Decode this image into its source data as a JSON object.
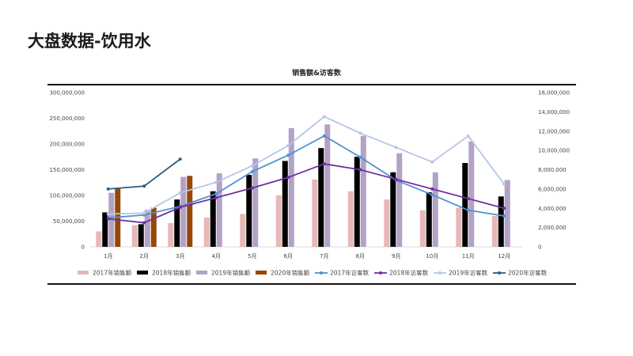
{
  "page": {
    "title": "大盘数据-饮用水"
  },
  "chart_data": {
    "type": "bar",
    "title": "销售额&访客数",
    "categories": [
      "1月",
      "2月",
      "3月",
      "4月",
      "5月",
      "6月",
      "7月",
      "8月",
      "9月",
      "10月",
      "11月",
      "12月"
    ],
    "y_left": {
      "min": 0,
      "max": 300000000,
      "ticks": [
        0,
        50000000,
        100000000,
        150000000,
        200000000,
        250000000,
        300000000
      ],
      "tick_labels": [
        "0",
        "50,000,000",
        "100,000,000",
        "150,000,000",
        "200,000,000",
        "250,000,000",
        "300,000,000"
      ]
    },
    "y_right": {
      "min": 0,
      "max": 16000000,
      "ticks": [
        0,
        2000000,
        4000000,
        6000000,
        8000000,
        10000000,
        12000000,
        14000000,
        16000000
      ],
      "tick_labels": [
        "0",
        "2,000,000",
        "4,000,000",
        "6,000,000",
        "8,000,000",
        "10,000,000",
        "12,000,000",
        "14,000,000",
        "16,000,000"
      ]
    },
    "bar_series": [
      {
        "name": "2017年销售额",
        "color": "#e6b8b7",
        "values": [
          30000000,
          42000000,
          46000000,
          57000000,
          64000000,
          100000000,
          131000000,
          108000000,
          92000000,
          71000000,
          76000000,
          60000000
        ]
      },
      {
        "name": "2018年销售额",
        "color": "#000000",
        "values": [
          67000000,
          44000000,
          92000000,
          108000000,
          140000000,
          167000000,
          192000000,
          175000000,
          145000000,
          106000000,
          163000000,
          98000000
        ]
      },
      {
        "name": "2019年销售额",
        "color": "#b3a2c7",
        "values": [
          105000000,
          72000000,
          136000000,
          143000000,
          172000000,
          231000000,
          238000000,
          216000000,
          182000000,
          145000000,
          205000000,
          130000000
        ]
      },
      {
        "name": "2020年销售额",
        "color": "#974706",
        "values": [
          114000000,
          76000000,
          138000000,
          null,
          null,
          null,
          null,
          null,
          null,
          null,
          null,
          null
        ]
      }
    ],
    "line_series": [
      {
        "name": "2017年访客数",
        "color": "#4f93cf",
        "values": [
          3000000,
          3300000,
          4200000,
          5500000,
          7800000,
          9500000,
          11500000,
          9300000,
          6900000,
          5400000,
          3800000,
          3200000
        ]
      },
      {
        "name": "2018年访客数",
        "color": "#7030a0",
        "values": [
          2900000,
          2500000,
          4100000,
          5100000,
          6100000,
          7200000,
          8600000,
          8000000,
          7000000,
          6000000,
          5000000,
          4000000
        ]
      },
      {
        "name": "2019年访客数",
        "color": "#b4c7e7",
        "values": [
          3400000,
          3500000,
          5600000,
          6700000,
          8400000,
          10500000,
          13500000,
          11800000,
          10300000,
          8800000,
          11500000,
          6500000
        ]
      },
      {
        "name": "2020年访客数",
        "color": "#2e5f7f",
        "values": [
          6000000,
          6300000,
          9100000,
          null,
          null,
          null,
          null,
          null,
          null,
          null,
          null,
          null
        ]
      }
    ],
    "legend_position": "bottom",
    "grid": false
  }
}
